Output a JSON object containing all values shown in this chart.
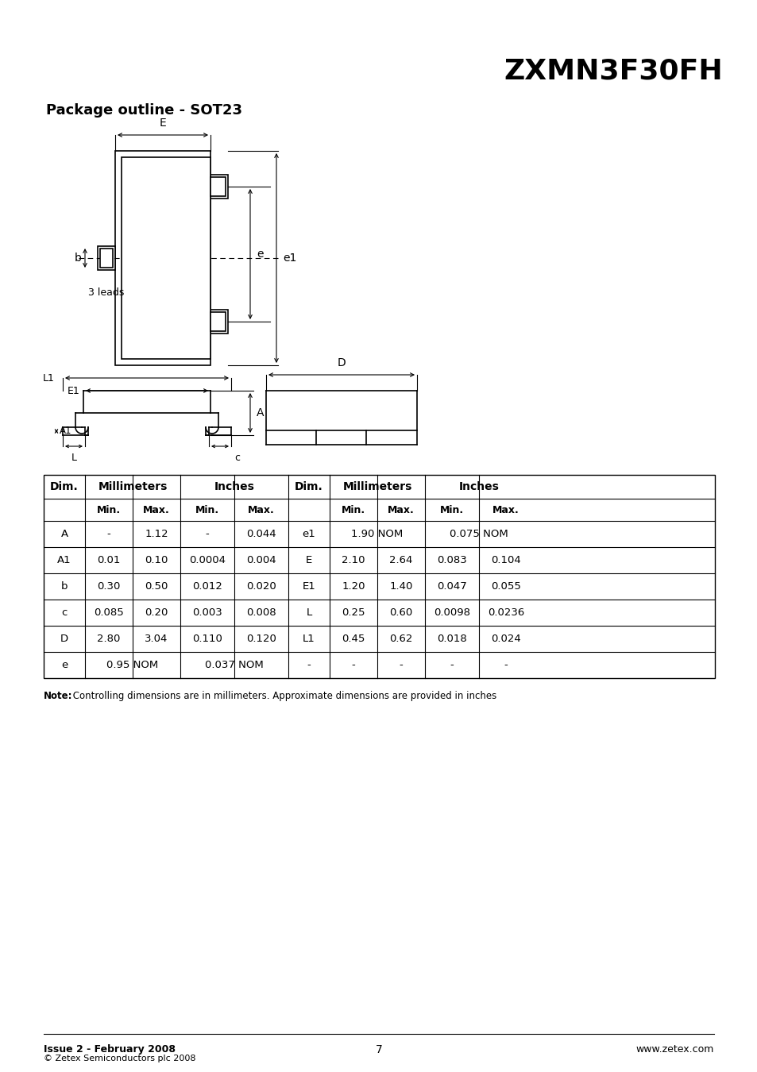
{
  "title": "ZXMN3F30FH",
  "page_title": "Package outline - SOT23",
  "bg_color": "#ffffff",
  "table_data_left": [
    [
      "A",
      "-",
      "1.12",
      "-",
      "0.044"
    ],
    [
      "A1",
      "0.01",
      "0.10",
      "0.0004",
      "0.004"
    ],
    [
      "b",
      "0.30",
      "0.50",
      "0.012",
      "0.020"
    ],
    [
      "c",
      "0.085",
      "0.20",
      "0.003",
      "0.008"
    ],
    [
      "D",
      "2.80",
      "3.04",
      "0.110",
      "0.120"
    ],
    [
      "e",
      "0.95 NOM",
      "",
      "0.037 NOM",
      ""
    ]
  ],
  "table_data_right": [
    [
      "e1",
      "1.90 NOM",
      "",
      "0.075 NOM",
      ""
    ],
    [
      "E",
      "2.10",
      "2.64",
      "0.083",
      "0.104"
    ],
    [
      "E1",
      "1.20",
      "1.40",
      "0.047",
      "0.055"
    ],
    [
      "L",
      "0.25",
      "0.60",
      "0.0098",
      "0.0236"
    ],
    [
      "L1",
      "0.45",
      "0.62",
      "0.018",
      "0.024"
    ],
    [
      "-",
      "-",
      "-",
      "-",
      "-"
    ]
  ],
  "note_bold": "Note:",
  "note_rest": " Controlling dimensions are in millimeters. Approximate dimensions are provided in inches",
  "footer_left": "Issue 2 - February 2008",
  "footer_copy": "© Zetex Semiconductors plc 2008",
  "footer_page": "7",
  "footer_right": "www.zetex.com"
}
